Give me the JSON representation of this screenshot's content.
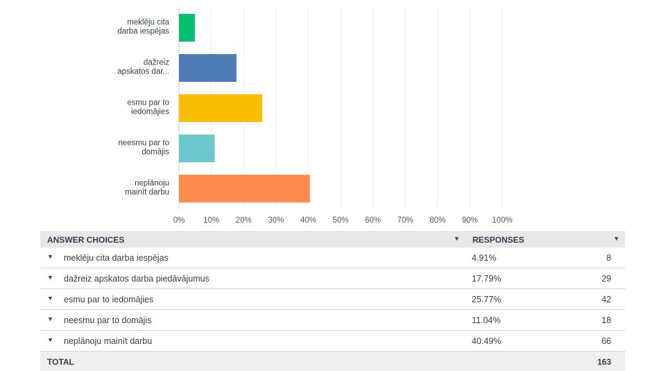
{
  "chart_data": {
    "type": "bar",
    "orientation": "horizontal",
    "categories": [
      [
        "meklēju cita",
        "darba iespējas"
      ],
      [
        "dažreiz",
        "apskatos dar..."
      ],
      [
        "esmu par to",
        "iedomājies"
      ],
      [
        "neesmu par to",
        "domājis"
      ],
      [
        "neplānoju",
        "mainīt darbu"
      ]
    ],
    "values": [
      4.91,
      17.79,
      25.77,
      11.04,
      40.49
    ],
    "xlim": [
      0,
      100
    ],
    "x_ticks": [
      "0%",
      "10%",
      "20%",
      "30%",
      "40%",
      "50%",
      "60%",
      "70%",
      "80%",
      "90%",
      "100%"
    ],
    "colors": [
      "#00bf6f",
      "#507cb6",
      "#f9be00",
      "#6bc8cd",
      "#ff8b4f"
    ],
    "grid": true,
    "legend": "none"
  },
  "table": {
    "header": {
      "choices": "ANSWER CHOICES",
      "responses": "RESPONSES",
      "sort_icon": "▼"
    },
    "rows": [
      {
        "label": "meklēju cita darba iespējas",
        "pct": "4.91%",
        "count": "8"
      },
      {
        "label": "dažreiz apskatos darba piedāvājumus",
        "pct": "17.79%",
        "count": "29"
      },
      {
        "label": "esmu par to iedomājies",
        "pct": "25.77%",
        "count": "42"
      },
      {
        "label": "neesmu par to domājis",
        "pct": "11.04%",
        "count": "18"
      },
      {
        "label": "neplānoju mainīt darbu",
        "pct": "40.49%",
        "count": "66"
      }
    ],
    "caret_icon": "▼",
    "total_label": "TOTAL",
    "total_value": "163"
  }
}
